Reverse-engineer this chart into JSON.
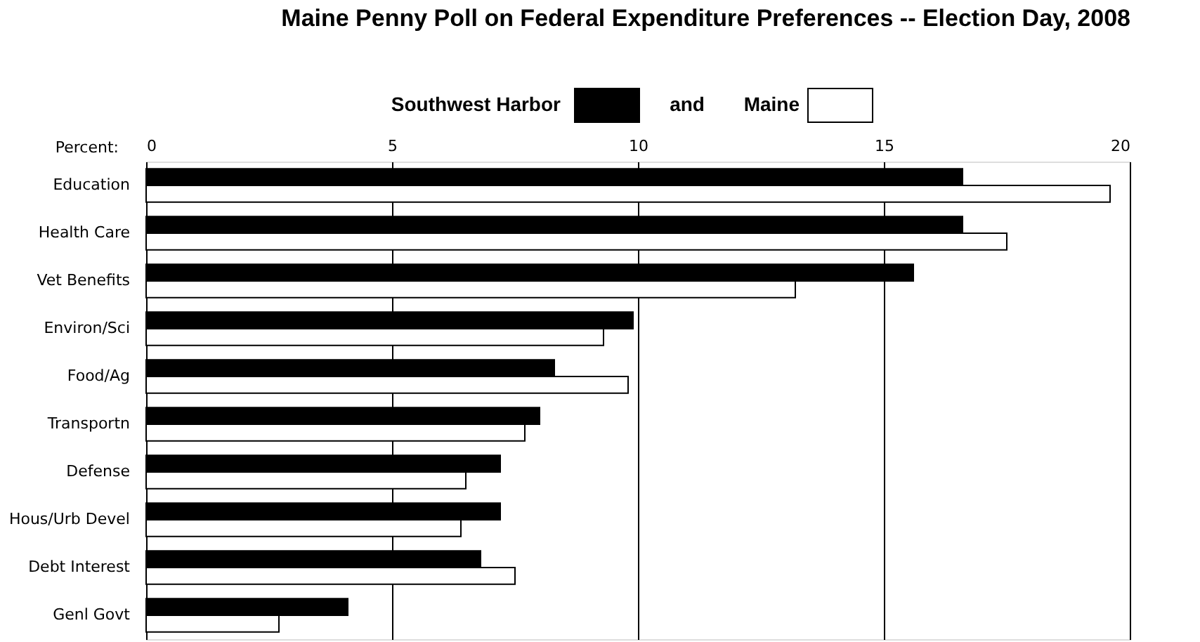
{
  "chart_data": {
    "type": "bar",
    "orientation": "horizontal",
    "title": "Maine Penny Poll on Federal Expenditure Preferences -- Election Day, 2008",
    "xlabel": "Percent:",
    "categories": [
      "Education",
      "Health Care",
      "Vet Benefits",
      "Environ/Sci",
      "Food/Ag",
      "Transportn",
      "Defense",
      "Hous/Urb Devel",
      "Debt Interest",
      "Genl Govt"
    ],
    "series": [
      {
        "name": "Southwest Harbor",
        "color": "#000000",
        "values": [
          16.6,
          16.6,
          15.6,
          9.9,
          8.3,
          8.0,
          7.2,
          7.2,
          6.8,
          4.1
        ]
      },
      {
        "name": "Maine",
        "color": "#ffffff",
        "values": [
          19.6,
          17.5,
          13.2,
          9.3,
          9.8,
          7.7,
          6.5,
          6.4,
          7.5,
          2.7
        ]
      }
    ],
    "annotations": [
      "and"
    ],
    "xlim": [
      0,
      20
    ],
    "xticks": [
      0,
      5,
      10,
      15,
      20
    ],
    "grid": "x",
    "legend": "top"
  }
}
